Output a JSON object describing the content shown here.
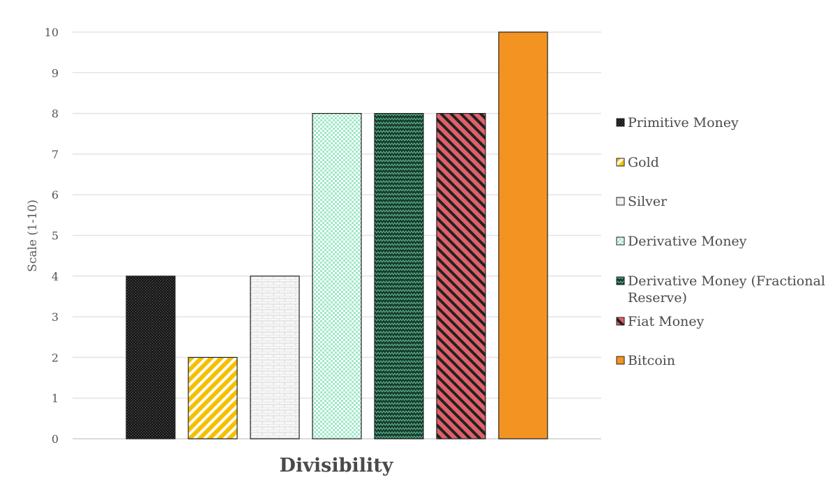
{
  "chart_data": {
    "type": "bar",
    "title": "",
    "xlabel": "Divisibility",
    "ylabel": "Scale (1-10)",
    "ylim": [
      0,
      10
    ],
    "yticks": [
      0,
      1,
      2,
      3,
      4,
      5,
      6,
      7,
      8,
      9,
      10
    ],
    "grid": true,
    "legend_position": "right",
    "series": [
      {
        "name": "Primitive Money",
        "value": 4,
        "color": "#1a1a1a",
        "pattern": "dots"
      },
      {
        "name": "Gold",
        "value": 2,
        "color": "#f5c000",
        "pattern": "diagonal-stripes"
      },
      {
        "name": "Silver",
        "value": 4,
        "color": "#f0f0f0",
        "pattern": "bricks"
      },
      {
        "name": "Derivative Money",
        "value": 8,
        "color": "#9ee8c8",
        "pattern": "checker"
      },
      {
        "name": "Derivative Money (Fractional Reserve)",
        "value": 8,
        "color": "#1e4a38",
        "pattern": "zigzag"
      },
      {
        "name": "Fiat Money",
        "value": 8,
        "color": "#e0606a",
        "pattern": "wide-diagonal"
      },
      {
        "name": "Bitcoin",
        "value": 10,
        "color": "#f39321",
        "pattern": "solid"
      }
    ]
  }
}
